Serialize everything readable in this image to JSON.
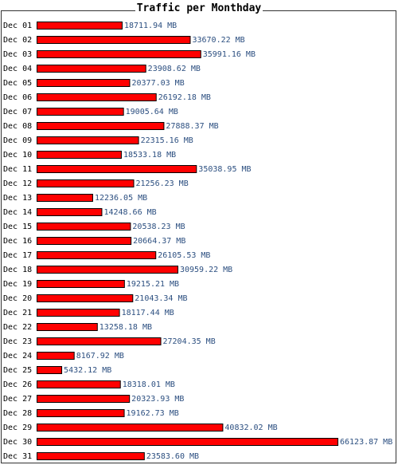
{
  "chart_data": {
    "type": "bar",
    "orientation": "horizontal",
    "title": "Traffic per Monthday",
    "unit": "MB",
    "categories": [
      "Dec 01",
      "Dec 02",
      "Dec 03",
      "Dec 04",
      "Dec 05",
      "Dec 06",
      "Dec 07",
      "Dec 08",
      "Dec 09",
      "Dec 10",
      "Dec 11",
      "Dec 12",
      "Dec 13",
      "Dec 14",
      "Dec 15",
      "Dec 16",
      "Dec 17",
      "Dec 18",
      "Dec 19",
      "Dec 20",
      "Dec 21",
      "Dec 22",
      "Dec 23",
      "Dec 24",
      "Dec 25",
      "Dec 26",
      "Dec 27",
      "Dec 28",
      "Dec 29",
      "Dec 30",
      "Dec 31"
    ],
    "values": [
      18711.94,
      33670.22,
      35991.16,
      23908.62,
      20377.03,
      26192.18,
      19005.64,
      27888.37,
      22315.16,
      18533.18,
      35038.95,
      21256.23,
      12236.05,
      14248.66,
      20538.23,
      20664.37,
      26105.53,
      30959.22,
      19215.21,
      21043.34,
      18117.44,
      13258.18,
      27204.35,
      8167.92,
      5432.12,
      18318.01,
      20323.93,
      19162.73,
      40832.02,
      66123.87,
      23583.6
    ],
    "value_labels": [
      "18711.94 MB",
      "33670.22 MB",
      "35991.16 MB",
      "23908.62 MB",
      "20377.03 MB",
      "26192.18 MB",
      "19005.64 MB",
      "27888.37 MB",
      "22315.16 MB",
      "18533.18 MB",
      "35038.95 MB",
      "21256.23 MB",
      "12236.05 MB",
      "14248.66 MB",
      "20538.23 MB",
      "20664.37 MB",
      "26105.53 MB",
      "30959.22 MB",
      "19215.21 MB",
      "21043.34 MB",
      "18117.44 MB",
      "13258.18 MB",
      "27204.35 MB",
      "8167.92 MB",
      "5432.12 MB",
      "18318.01 MB",
      "20323.93 MB",
      "19162.73 MB",
      "40832.02 MB",
      "66123.87 MB",
      "23583.60 MB"
    ],
    "bar_color": "#ff0000",
    "bar_border_color": "#000000",
    "value_label_color": "#2c4f80"
  }
}
